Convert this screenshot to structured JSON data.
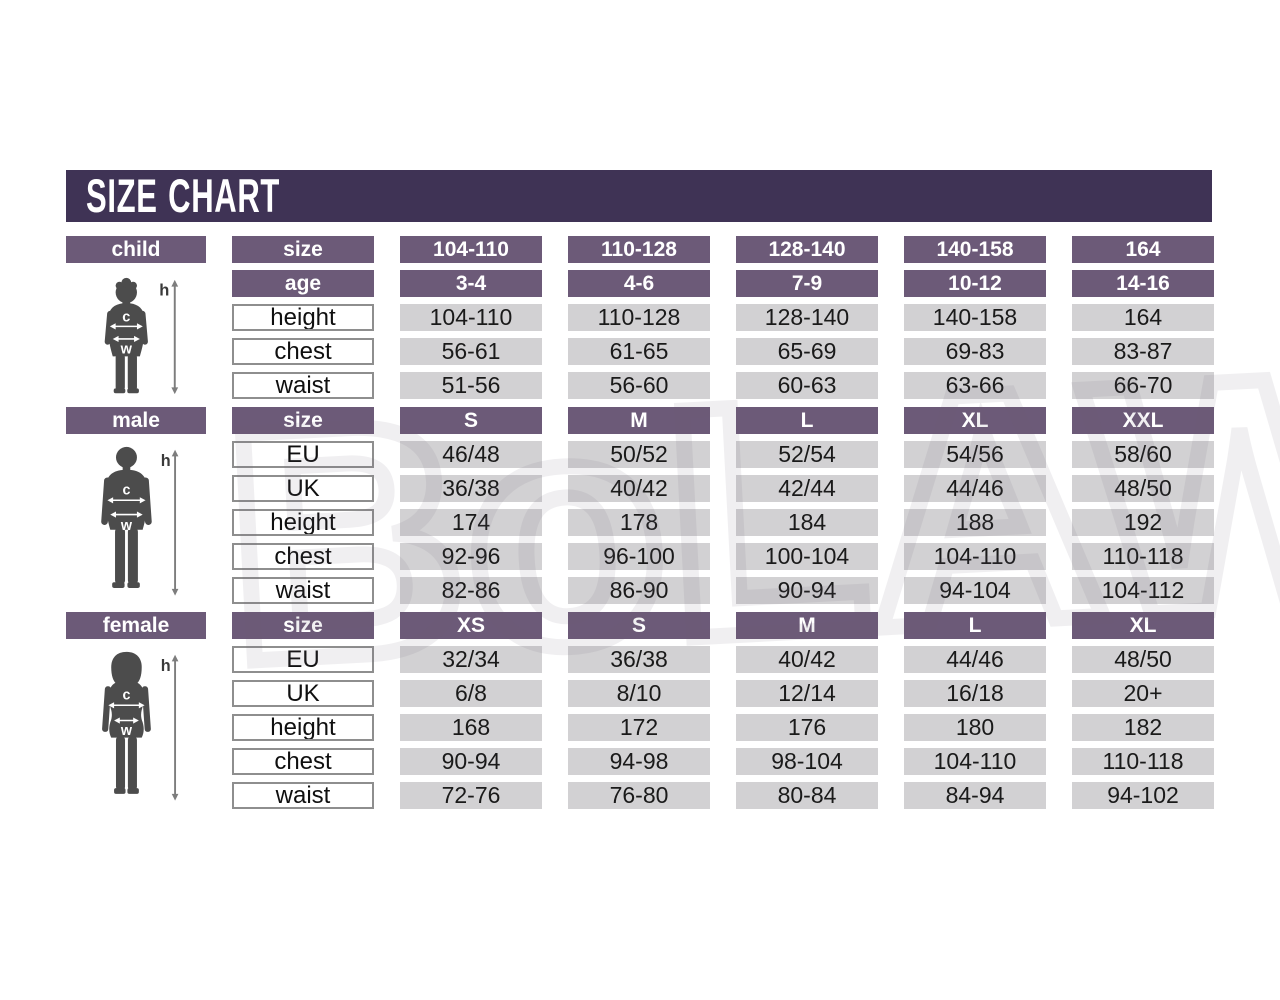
{
  "title": "SIZE CHART",
  "watermark_text": "BoLAWD",
  "figure_labels": {
    "height": "h",
    "chest": "c",
    "waist": "w"
  },
  "colors": {
    "banner_bg": "#3f3355",
    "bar_purple": "#6c5a78",
    "cell_gray": "#d2d1d3",
    "label_border": "#8e8e8e",
    "silhouette": "#4c4c4c",
    "text_dark": "#1a1a1a",
    "bar_text": "#ffffff"
  },
  "chart_data": [
    {
      "type": "table",
      "title": "child",
      "header_rows": [
        {
          "label": "size",
          "values": [
            "104-110",
            "110-128",
            "128-140",
            "140-158",
            "164"
          ]
        },
        {
          "label": "age",
          "values": [
            "3-4",
            "4-6",
            "7-9",
            "10-12",
            "14-16"
          ]
        }
      ],
      "rows": [
        {
          "label": "height",
          "values": [
            "104-110",
            "110-128",
            "128-140",
            "140-158",
            "164"
          ]
        },
        {
          "label": "chest",
          "values": [
            "56-61",
            "61-65",
            "65-69",
            "69-83",
            "83-87"
          ]
        },
        {
          "label": "waist",
          "values": [
            "51-56",
            "56-60",
            "60-63",
            "63-66",
            "66-70"
          ]
        }
      ]
    },
    {
      "type": "table",
      "title": "male",
      "header_rows": [
        {
          "label": "size",
          "values": [
            "S",
            "M",
            "L",
            "XL",
            "XXL"
          ]
        }
      ],
      "rows": [
        {
          "label": "EU",
          "values": [
            "46/48",
            "50/52",
            "52/54",
            "54/56",
            "58/60"
          ]
        },
        {
          "label": "UK",
          "values": [
            "36/38",
            "40/42",
            "42/44",
            "44/46",
            "48/50"
          ]
        },
        {
          "label": "height",
          "values": [
            "174",
            "178",
            "184",
            "188",
            "192"
          ]
        },
        {
          "label": "chest",
          "values": [
            "92-96",
            "96-100",
            "100-104",
            "104-110",
            "110-118"
          ]
        },
        {
          "label": "waist",
          "values": [
            "82-86",
            "86-90",
            "90-94",
            "94-104",
            "104-112"
          ]
        }
      ]
    },
    {
      "type": "table",
      "title": "female",
      "header_rows": [
        {
          "label": "size",
          "values": [
            "XS",
            "S",
            "M",
            "L",
            "XL"
          ]
        }
      ],
      "rows": [
        {
          "label": "EU",
          "values": [
            "32/34",
            "36/38",
            "40/42",
            "44/46",
            "48/50"
          ]
        },
        {
          "label": "UK",
          "values": [
            "6/8",
            "8/10",
            "12/14",
            "16/18",
            "20+"
          ]
        },
        {
          "label": "height",
          "values": [
            "168",
            "172",
            "176",
            "180",
            "182"
          ]
        },
        {
          "label": "chest",
          "values": [
            "90-94",
            "94-98",
            "98-104",
            "104-110",
            "110-118"
          ]
        },
        {
          "label": "waist",
          "values": [
            "72-76",
            "76-80",
            "80-84",
            "84-94",
            "94-102"
          ]
        }
      ]
    }
  ]
}
